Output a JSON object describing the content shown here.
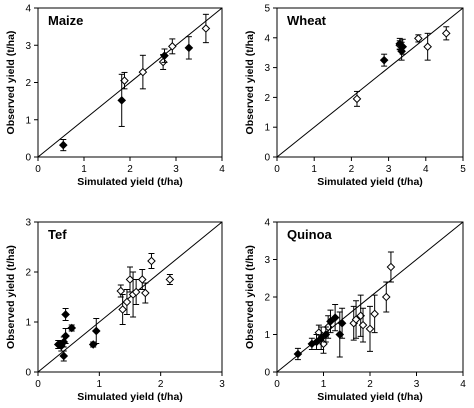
{
  "figure": {
    "background": "#ffffff",
    "ink": "#000000"
  },
  "chart_data": [
    {
      "type": "scatter",
      "title": "Maize",
      "xlabel": "Simulated yield (t/ha)",
      "ylabel": "Observed yield (t/ha)",
      "xlim": [
        0,
        4
      ],
      "ylim": [
        0,
        4
      ],
      "xticks": [
        "0",
        "1",
        "2",
        "3",
        "4"
      ],
      "yticks": [
        "0",
        "1",
        "2",
        "3",
        "4"
      ],
      "reference_line": "1:1",
      "series": [
        {
          "marker": "filled-diamond",
          "points": [
            {
              "x": 0.55,
              "y": 0.32,
              "err": 0.15
            },
            {
              "x": 1.82,
              "y": 1.52,
              "err": 0.7
            },
            {
              "x": 2.75,
              "y": 2.72,
              "err": 0.18
            },
            {
              "x": 3.28,
              "y": 2.93,
              "err": 0.3
            }
          ]
        },
        {
          "marker": "open-diamond",
          "points": [
            {
              "x": 1.88,
              "y": 2.05,
              "err": 0.22
            },
            {
              "x": 2.28,
              "y": 2.28,
              "err": 0.45
            },
            {
              "x": 2.72,
              "y": 2.55,
              "err": 0.2
            },
            {
              "x": 2.92,
              "y": 2.97,
              "err": 0.2
            },
            {
              "x": 3.65,
              "y": 3.45,
              "err": 0.38
            }
          ]
        }
      ]
    },
    {
      "type": "scatter",
      "title": "Wheat",
      "xlabel": "Simulated yield (t/ha)",
      "ylabel": "Observed yield (t/ha)",
      "xlim": [
        0,
        5
      ],
      "ylim": [
        0,
        5
      ],
      "xticks": [
        "0",
        "1",
        "2",
        "3",
        "4",
        "5"
      ],
      "yticks": [
        "0",
        "1",
        "2",
        "3",
        "4",
        "5"
      ],
      "reference_line": "1:1",
      "series": [
        {
          "marker": "filled-diamond",
          "points": [
            {
              "x": 2.88,
              "y": 3.25,
              "err": 0.2
            },
            {
              "x": 3.3,
              "y": 3.8,
              "err": 0.18
            },
            {
              "x": 3.35,
              "y": 3.55,
              "err": 0.3
            },
            {
              "x": 3.38,
              "y": 3.7,
              "err": 0.25
            }
          ]
        },
        {
          "marker": "open-diamond",
          "points": [
            {
              "x": 2.15,
              "y": 1.95,
              "err": 0.25
            },
            {
              "x": 3.3,
              "y": 3.75,
              "err": 0.15
            },
            {
              "x": 3.8,
              "y": 3.98,
              "err": 0.12
            },
            {
              "x": 4.05,
              "y": 3.7,
              "err": 0.45
            },
            {
              "x": 4.55,
              "y": 4.15,
              "err": 0.22
            }
          ]
        }
      ]
    },
    {
      "type": "scatter",
      "title": "Tef",
      "xlabel": "Simulated yield (t/ha)",
      "ylabel": "Observed yield (t/ha)",
      "xlim": [
        0,
        3
      ],
      "ylim": [
        0,
        3
      ],
      "xticks": [
        "0",
        "1",
        "2",
        "3"
      ],
      "yticks": [
        "0",
        "1",
        "2",
        "3"
      ],
      "reference_line": "1:1",
      "series": [
        {
          "marker": "filled-diamond",
          "points": [
            {
              "x": 0.33,
              "y": 0.55,
              "err": 0.08
            },
            {
              "x": 0.38,
              "y": 0.52,
              "err": 0.1
            },
            {
              "x": 0.42,
              "y": 0.6,
              "err": 0.1
            },
            {
              "x": 0.42,
              "y": 0.32,
              "err": 0.1
            },
            {
              "x": 0.45,
              "y": 0.72,
              "err": 0.15
            },
            {
              "x": 0.45,
              "y": 1.15,
              "err": 0.12
            },
            {
              "x": 0.55,
              "y": 0.88,
              "err": 0.06
            },
            {
              "x": 0.9,
              "y": 0.55,
              "err": 0.05
            },
            {
              "x": 0.95,
              "y": 0.82,
              "err": 0.25
            }
          ]
        },
        {
          "marker": "open-diamond",
          "points": [
            {
              "x": 1.35,
              "y": 1.62,
              "err": 0.12
            },
            {
              "x": 1.38,
              "y": 1.25,
              "err": 0.3
            },
            {
              "x": 1.45,
              "y": 1.4,
              "err": 0.25
            },
            {
              "x": 1.5,
              "y": 1.85,
              "err": 0.25
            },
            {
              "x": 1.55,
              "y": 1.55,
              "err": 0.45
            },
            {
              "x": 1.6,
              "y": 1.6,
              "err": 0.25
            },
            {
              "x": 1.7,
              "y": 1.85,
              "err": 0.2
            },
            {
              "x": 1.75,
              "y": 1.58,
              "err": 0.2
            },
            {
              "x": 1.85,
              "y": 2.22,
              "err": 0.15
            },
            {
              "x": 2.15,
              "y": 1.85,
              "err": 0.1
            }
          ]
        }
      ]
    },
    {
      "type": "scatter",
      "title": "Quinoa",
      "xlabel": "Simulated yield (t/ha)",
      "ylabel": "Observed yield (t/ha)",
      "xlim": [
        0,
        4
      ],
      "ylim": [
        0,
        4
      ],
      "xticks": [
        "0",
        "1",
        "2",
        "3",
        "4"
      ],
      "yticks": [
        "0",
        "1",
        "2",
        "3",
        "4"
      ],
      "reference_line": "1:1",
      "series": [
        {
          "marker": "filled-diamond",
          "points": [
            {
              "x": 0.45,
              "y": 0.48,
              "err": 0.15
            },
            {
              "x": 0.75,
              "y": 0.75,
              "err": 0.15
            },
            {
              "x": 0.85,
              "y": 0.8,
              "err": 0.2
            },
            {
              "x": 0.95,
              "y": 0.9,
              "err": 0.3
            },
            {
              "x": 1.05,
              "y": 1.0,
              "err": 0.2
            },
            {
              "x": 1.15,
              "y": 1.35,
              "err": 0.3
            },
            {
              "x": 1.25,
              "y": 1.45,
              "err": 0.35
            },
            {
              "x": 1.35,
              "y": 1.0,
              "err": 0.6
            },
            {
              "x": 1.4,
              "y": 1.3,
              "err": 0.4
            }
          ]
        },
        {
          "marker": "open-diamond",
          "points": [
            {
              "x": 0.9,
              "y": 1.05,
              "err": 0.2
            },
            {
              "x": 1.0,
              "y": 0.75,
              "err": 0.25
            },
            {
              "x": 1.1,
              "y": 1.2,
              "err": 0.3
            },
            {
              "x": 1.65,
              "y": 1.3,
              "err": 0.45
            },
            {
              "x": 1.7,
              "y": 1.4,
              "err": 0.5
            },
            {
              "x": 1.8,
              "y": 1.5,
              "err": 0.55
            },
            {
              "x": 1.85,
              "y": 1.25,
              "err": 0.45
            },
            {
              "x": 2.0,
              "y": 1.15,
              "err": 0.6
            },
            {
              "x": 2.1,
              "y": 1.55,
              "err": 0.5
            },
            {
              "x": 2.35,
              "y": 2.0,
              "err": 0.4
            },
            {
              "x": 2.45,
              "y": 2.8,
              "err": 0.4
            }
          ]
        }
      ]
    }
  ]
}
